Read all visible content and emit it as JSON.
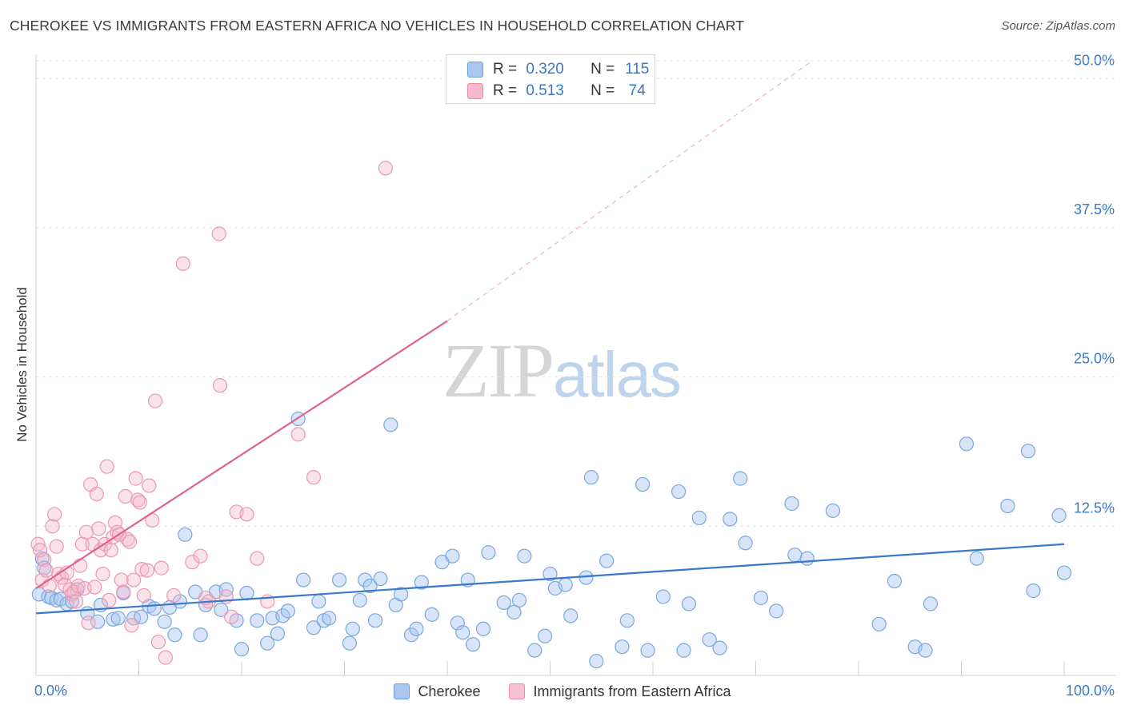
{
  "header": {
    "title": "CHEROKEE VS IMMIGRANTS FROM EASTERN AFRICA NO VEHICLES IN HOUSEHOLD CORRELATION CHART",
    "source": "Source: ZipAtlas.com"
  },
  "watermark": {
    "zip": "ZIP",
    "atlas": "atlas"
  },
  "stats_box": {
    "rows": [
      {
        "r_label": "R =",
        "r_value": "0.320",
        "n_label": "N =",
        "n_value": "115",
        "color": "#a9c6ef"
      },
      {
        "r_label": "R =",
        "r_value": "0.513",
        "n_label": "N =",
        "n_value": "74",
        "color": "#f6b8cb"
      }
    ]
  },
  "legend": [
    {
      "label": "Cherokee",
      "color": "#a9c6ef",
      "border": "#6d9fdc"
    },
    {
      "label": "Immigrants from Eastern Africa",
      "color": "#f6c2d2",
      "border": "#e88aa8"
    }
  ],
  "chart_data": {
    "type": "scatter",
    "title": "CHEROKEE VS IMMIGRANTS FROM EASTERN AFRICA NO VEHICLES IN HOUSEHOLD CORRELATION CHART",
    "xlabel": "",
    "ylabel": "No Vehicles in Household",
    "xlim": [
      0,
      100
    ],
    "ylim": [
      0,
      51.5
    ],
    "x_tick_labels": [
      "0.0%",
      "100.0%"
    ],
    "y_ticks": [
      12.5,
      25.0,
      37.5,
      50.0
    ],
    "y_tick_labels": [
      "12.5%",
      "25.0%",
      "37.5%",
      "50.0%"
    ],
    "grid": true,
    "legend_position": "bottom",
    "colors": {
      "cherokee": "#3a78c9",
      "eastern_africa": "#e0628a"
    },
    "series": [
      {
        "name": "Cherokee",
        "trend": {
          "x": [
            0,
            100
          ],
          "y": [
            5.2,
            11.0
          ]
        },
        "points": [
          [
            0.3,
            6.8
          ],
          [
            0.6,
            9.8
          ],
          [
            0.8,
            9.0
          ],
          [
            1.2,
            6.6
          ],
          [
            1.5,
            6.5
          ],
          [
            2.0,
            6.3
          ],
          [
            2.4,
            6.4
          ],
          [
            3.0,
            6.0
          ],
          [
            3.5,
            6.2
          ],
          [
            4.0,
            7.2
          ],
          [
            5.0,
            5.2
          ],
          [
            6.0,
            4.5
          ],
          [
            6.3,
            5.9
          ],
          [
            7.5,
            4.7
          ],
          [
            8.0,
            4.8
          ],
          [
            8.5,
            6.9
          ],
          [
            9.5,
            4.8
          ],
          [
            10.2,
            4.9
          ],
          [
            11.0,
            5.8
          ],
          [
            11.5,
            5.6
          ],
          [
            12.5,
            4.5
          ],
          [
            13.0,
            5.7
          ],
          [
            13.5,
            3.4
          ],
          [
            14.0,
            6.2
          ],
          [
            14.5,
            11.8
          ],
          [
            15.5,
            7.0
          ],
          [
            16.0,
            3.4
          ],
          [
            16.5,
            5.9
          ],
          [
            17.5,
            7.0
          ],
          [
            18.0,
            5.5
          ],
          [
            18.5,
            7.2
          ],
          [
            19.5,
            4.6
          ],
          [
            20.0,
            2.2
          ],
          [
            20.5,
            6.9
          ],
          [
            21.5,
            4.6
          ],
          [
            22.5,
            2.7
          ],
          [
            23.0,
            4.8
          ],
          [
            23.5,
            3.5
          ],
          [
            24.0,
            5.0
          ],
          [
            24.5,
            5.4
          ],
          [
            25.5,
            21.5
          ],
          [
            26.0,
            8.0
          ],
          [
            27.0,
            4.0
          ],
          [
            27.5,
            6.2
          ],
          [
            28.0,
            4.6
          ],
          [
            28.5,
            4.8
          ],
          [
            29.5,
            8.0
          ],
          [
            30.5,
            2.7
          ],
          [
            30.8,
            3.9
          ],
          [
            31.5,
            6.3
          ],
          [
            32.0,
            8.0
          ],
          [
            32.5,
            7.5
          ],
          [
            33.0,
            4.6
          ],
          [
            33.5,
            8.1
          ],
          [
            34.5,
            21.0
          ],
          [
            35.0,
            5.9
          ],
          [
            35.5,
            6.8
          ],
          [
            36.5,
            3.4
          ],
          [
            37.0,
            3.9
          ],
          [
            37.5,
            7.8
          ],
          [
            38.5,
            5.1
          ],
          [
            39.5,
            9.5
          ],
          [
            40.5,
            10.0
          ],
          [
            41.0,
            4.4
          ],
          [
            41.5,
            3.6
          ],
          [
            42.0,
            8.0
          ],
          [
            42.5,
            2.6
          ],
          [
            43.5,
            3.9
          ],
          [
            44.0,
            10.3
          ],
          [
            45.5,
            6.1
          ],
          [
            46.5,
            5.3
          ],
          [
            47.0,
            6.3
          ],
          [
            47.5,
            10.0
          ],
          [
            48.5,
            2.1
          ],
          [
            49.5,
            3.3
          ],
          [
            50.0,
            8.5
          ],
          [
            50.5,
            7.3
          ],
          [
            51.5,
            7.6
          ],
          [
            52.0,
            5.0
          ],
          [
            53.5,
            8.2
          ],
          [
            54.0,
            16.6
          ],
          [
            54.5,
            1.2
          ],
          [
            55.5,
            9.6
          ],
          [
            57.0,
            2.4
          ],
          [
            57.5,
            4.6
          ],
          [
            59.0,
            16.0
          ],
          [
            59.5,
            2.1
          ],
          [
            61.0,
            6.6
          ],
          [
            62.5,
            15.4
          ],
          [
            63.0,
            2.1
          ],
          [
            63.5,
            6.0
          ],
          [
            64.5,
            13.2
          ],
          [
            65.5,
            3.0
          ],
          [
            66.5,
            2.3
          ],
          [
            67.5,
            13.1
          ],
          [
            68.5,
            16.5
          ],
          [
            69.0,
            11.1
          ],
          [
            70.5,
            6.5
          ],
          [
            72.0,
            5.4
          ],
          [
            73.5,
            14.4
          ],
          [
            73.8,
            10.1
          ],
          [
            75.0,
            9.8
          ],
          [
            77.5,
            13.8
          ],
          [
            82.0,
            4.3
          ],
          [
            83.5,
            7.9
          ],
          [
            85.5,
            2.4
          ],
          [
            86.5,
            2.1
          ],
          [
            87.0,
            6.0
          ],
          [
            90.5,
            19.4
          ],
          [
            91.5,
            9.8
          ],
          [
            94.5,
            14.2
          ],
          [
            96.5,
            18.8
          ],
          [
            97.0,
            7.1
          ],
          [
            99.5,
            13.4
          ],
          [
            100.0,
            8.6
          ]
        ]
      },
      {
        "name": "Immigrants from Eastern Africa",
        "trend": {
          "x": [
            0,
            40
          ],
          "y": [
            7.3,
            29.7
          ]
        },
        "trend_dashed": {
          "x": [
            40,
            75.5
          ],
          "y": [
            29.7,
            51.5
          ]
        },
        "points": [
          [
            0.2,
            11.0
          ],
          [
            0.4,
            10.5
          ],
          [
            0.6,
            8.0
          ],
          [
            0.8,
            9.7
          ],
          [
            1.0,
            8.8
          ],
          [
            1.3,
            7.5
          ],
          [
            1.6,
            12.5
          ],
          [
            1.8,
            13.5
          ],
          [
            2.0,
            10.8
          ],
          [
            2.2,
            8.5
          ],
          [
            2.5,
            8.2
          ],
          [
            2.8,
            7.6
          ],
          [
            3.0,
            8.6
          ],
          [
            3.3,
            7.2
          ],
          [
            3.5,
            6.8
          ],
          [
            3.7,
            7.0
          ],
          [
            3.9,
            6.2
          ],
          [
            4.1,
            7.5
          ],
          [
            4.3,
            9.2
          ],
          [
            4.5,
            11.0
          ],
          [
            4.7,
            7.3
          ],
          [
            4.9,
            12.0
          ],
          [
            5.1,
            4.4
          ],
          [
            5.3,
            16.0
          ],
          [
            5.5,
            11.0
          ],
          [
            5.7,
            7.4
          ],
          [
            5.9,
            15.2
          ],
          [
            6.1,
            12.3
          ],
          [
            6.3,
            10.5
          ],
          [
            6.5,
            8.5
          ],
          [
            6.7,
            11.0
          ],
          [
            6.9,
            17.5
          ],
          [
            7.1,
            6.3
          ],
          [
            7.3,
            10.5
          ],
          [
            7.5,
            11.6
          ],
          [
            7.7,
            12.8
          ],
          [
            7.9,
            12.0
          ],
          [
            8.1,
            11.8
          ],
          [
            8.3,
            8.0
          ],
          [
            8.5,
            7.0
          ],
          [
            8.7,
            15.0
          ],
          [
            8.9,
            11.4
          ],
          [
            9.1,
            11.2
          ],
          [
            9.3,
            4.2
          ],
          [
            9.5,
            8.0
          ],
          [
            9.7,
            16.5
          ],
          [
            9.9,
            14.7
          ],
          [
            10.1,
            14.5
          ],
          [
            10.3,
            8.9
          ],
          [
            10.5,
            6.7
          ],
          [
            10.8,
            8.8
          ],
          [
            11.0,
            15.9
          ],
          [
            11.3,
            13.0
          ],
          [
            11.6,
            23.0
          ],
          [
            11.9,
            2.8
          ],
          [
            12.2,
            9.0
          ],
          [
            12.6,
            1.5
          ],
          [
            13.4,
            6.7
          ],
          [
            14.3,
            34.5
          ],
          [
            15.2,
            9.5
          ],
          [
            16.0,
            10.0
          ],
          [
            16.5,
            6.5
          ],
          [
            16.8,
            6.2
          ],
          [
            17.8,
            37.0
          ],
          [
            17.9,
            24.3
          ],
          [
            18.5,
            6.6
          ],
          [
            19.0,
            4.9
          ],
          [
            19.5,
            13.7
          ],
          [
            20.5,
            13.5
          ],
          [
            21.5,
            9.8
          ],
          [
            22.5,
            6.2
          ],
          [
            25.5,
            20.2
          ],
          [
            27.0,
            16.6
          ],
          [
            34.0,
            42.5
          ]
        ]
      }
    ]
  }
}
